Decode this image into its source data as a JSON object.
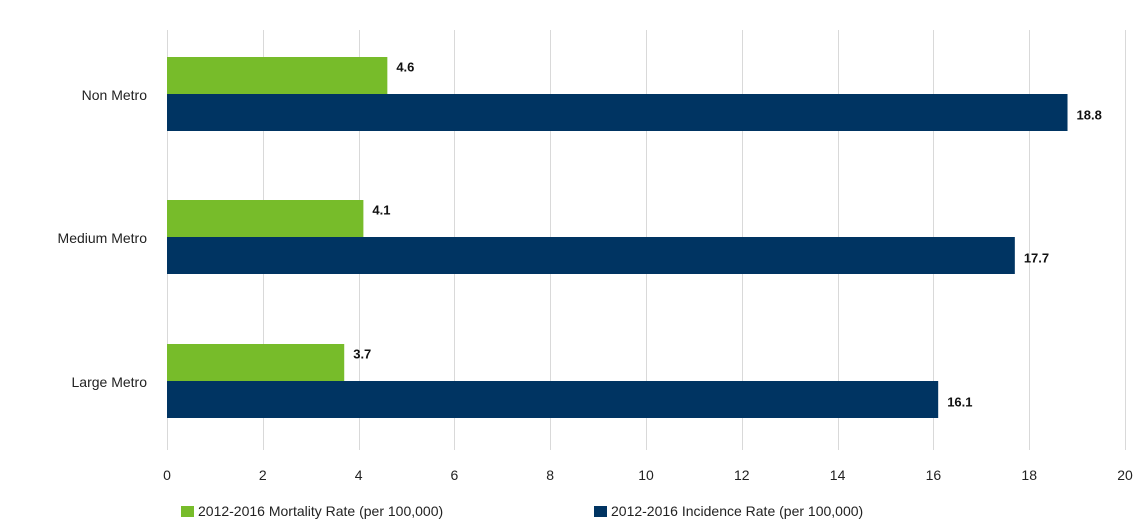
{
  "chart_data": {
    "type": "bar",
    "orientation": "horizontal",
    "categories": [
      "Non Metro",
      "Medium Metro",
      "Large Metro"
    ],
    "series": [
      {
        "name": "2012-2016 Mortality Rate (per 100,000)",
        "color": "#77bc2a",
        "values": [
          4.6,
          4.1,
          3.7
        ]
      },
      {
        "name": "2012-2016 Incidence Rate (per 100,000)",
        "color": "#003462",
        "values": [
          18.8,
          17.7,
          16.1
        ]
      }
    ],
    "xlim": [
      0,
      20
    ],
    "xticks": [
      "0",
      "2",
      "4",
      "6",
      "8",
      "10",
      "12",
      "14",
      "16",
      "18",
      "20"
    ],
    "data_labels": [
      [
        "4.6",
        "4.1",
        "3.7"
      ],
      [
        "18.8",
        "17.7",
        "16.1"
      ]
    ],
    "grid": "vertical",
    "legend": "bottom"
  }
}
